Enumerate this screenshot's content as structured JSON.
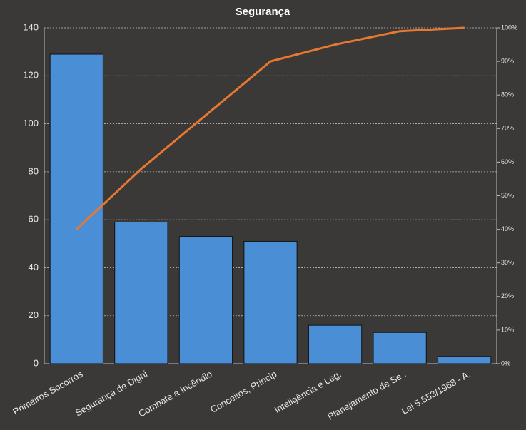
{
  "chart_data": {
    "type": "bar",
    "title": "Segurança",
    "categories": [
      "Primeiros Socorros",
      "Segurança de Digni",
      "Combate a Incêndio",
      "Conceitos, Princip",
      "Inteligência e Leg.",
      "Planejamento de Se .",
      "Lei 5.553/1968  - A."
    ],
    "values": [
      129,
      59,
      53,
      51,
      16,
      13,
      3
    ],
    "color": "#4a8fd6",
    "line": {
      "values": [
        40,
        58,
        74,
        90,
        95,
        99,
        100
      ],
      "color": "#e8782f",
      "axis": "y2"
    },
    "ylim": [
      0,
      140
    ],
    "yticks": [
      0,
      20,
      40,
      60,
      80,
      100,
      120,
      140
    ],
    "y2lim": [
      0,
      100
    ],
    "y2ticks": [
      {
        "value": 0,
        "label": "0%"
      },
      {
        "value": 10,
        "label": "10%"
      },
      {
        "value": 20,
        "label": "20%"
      },
      {
        "value": 30,
        "label": "30%"
      },
      {
        "value": 40,
        "label": "40%"
      },
      {
        "value": 50,
        "label": "50%"
      },
      {
        "value": 60,
        "label": "60%"
      },
      {
        "value": 70,
        "label": "70%"
      },
      {
        "value": 80,
        "label": "80%"
      },
      {
        "value": 90,
        "label": "90%"
      },
      {
        "value": 100,
        "label": "100%"
      }
    ],
    "grid": true
  }
}
